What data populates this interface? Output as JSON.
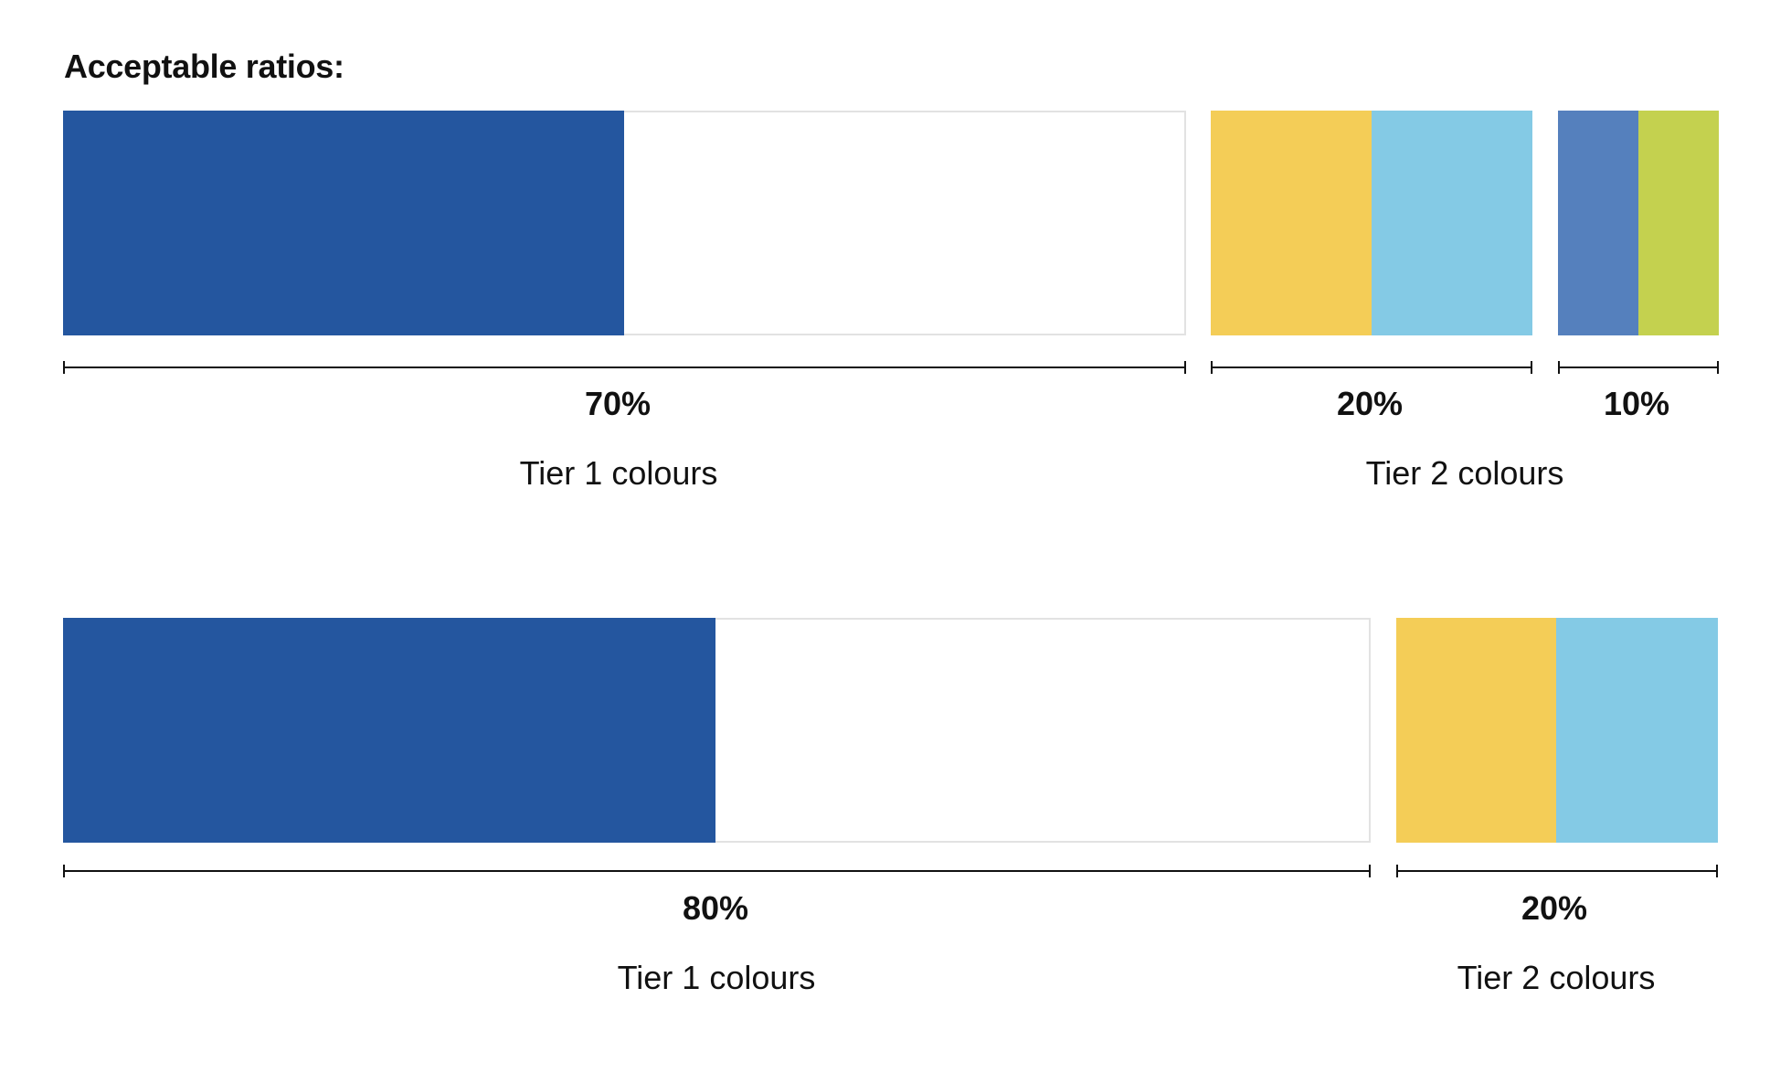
{
  "title": "Acceptable ratios:",
  "colors": {
    "tier1_primary": "#24569f",
    "white": "#ffffff",
    "yellow": "#f4cd57",
    "sky_blue": "#84cae5",
    "mid_blue": "#5580bd",
    "lime": "#c4d14f"
  },
  "diagram_1": {
    "segments": [
      {
        "label": "70%",
        "tier": "Tier 1 colours",
        "share": 0.7
      },
      {
        "label": "20%",
        "tier": "Tier 2 colours",
        "share": 0.2
      },
      {
        "label": "10%",
        "share": 0.1
      }
    ]
  },
  "diagram_2": {
    "segments": [
      {
        "label": "80%",
        "tier": "Tier 1 colours",
        "share": 0.8
      },
      {
        "label": "20%",
        "tier": "Tier 2 colours",
        "share": 0.2
      }
    ]
  }
}
